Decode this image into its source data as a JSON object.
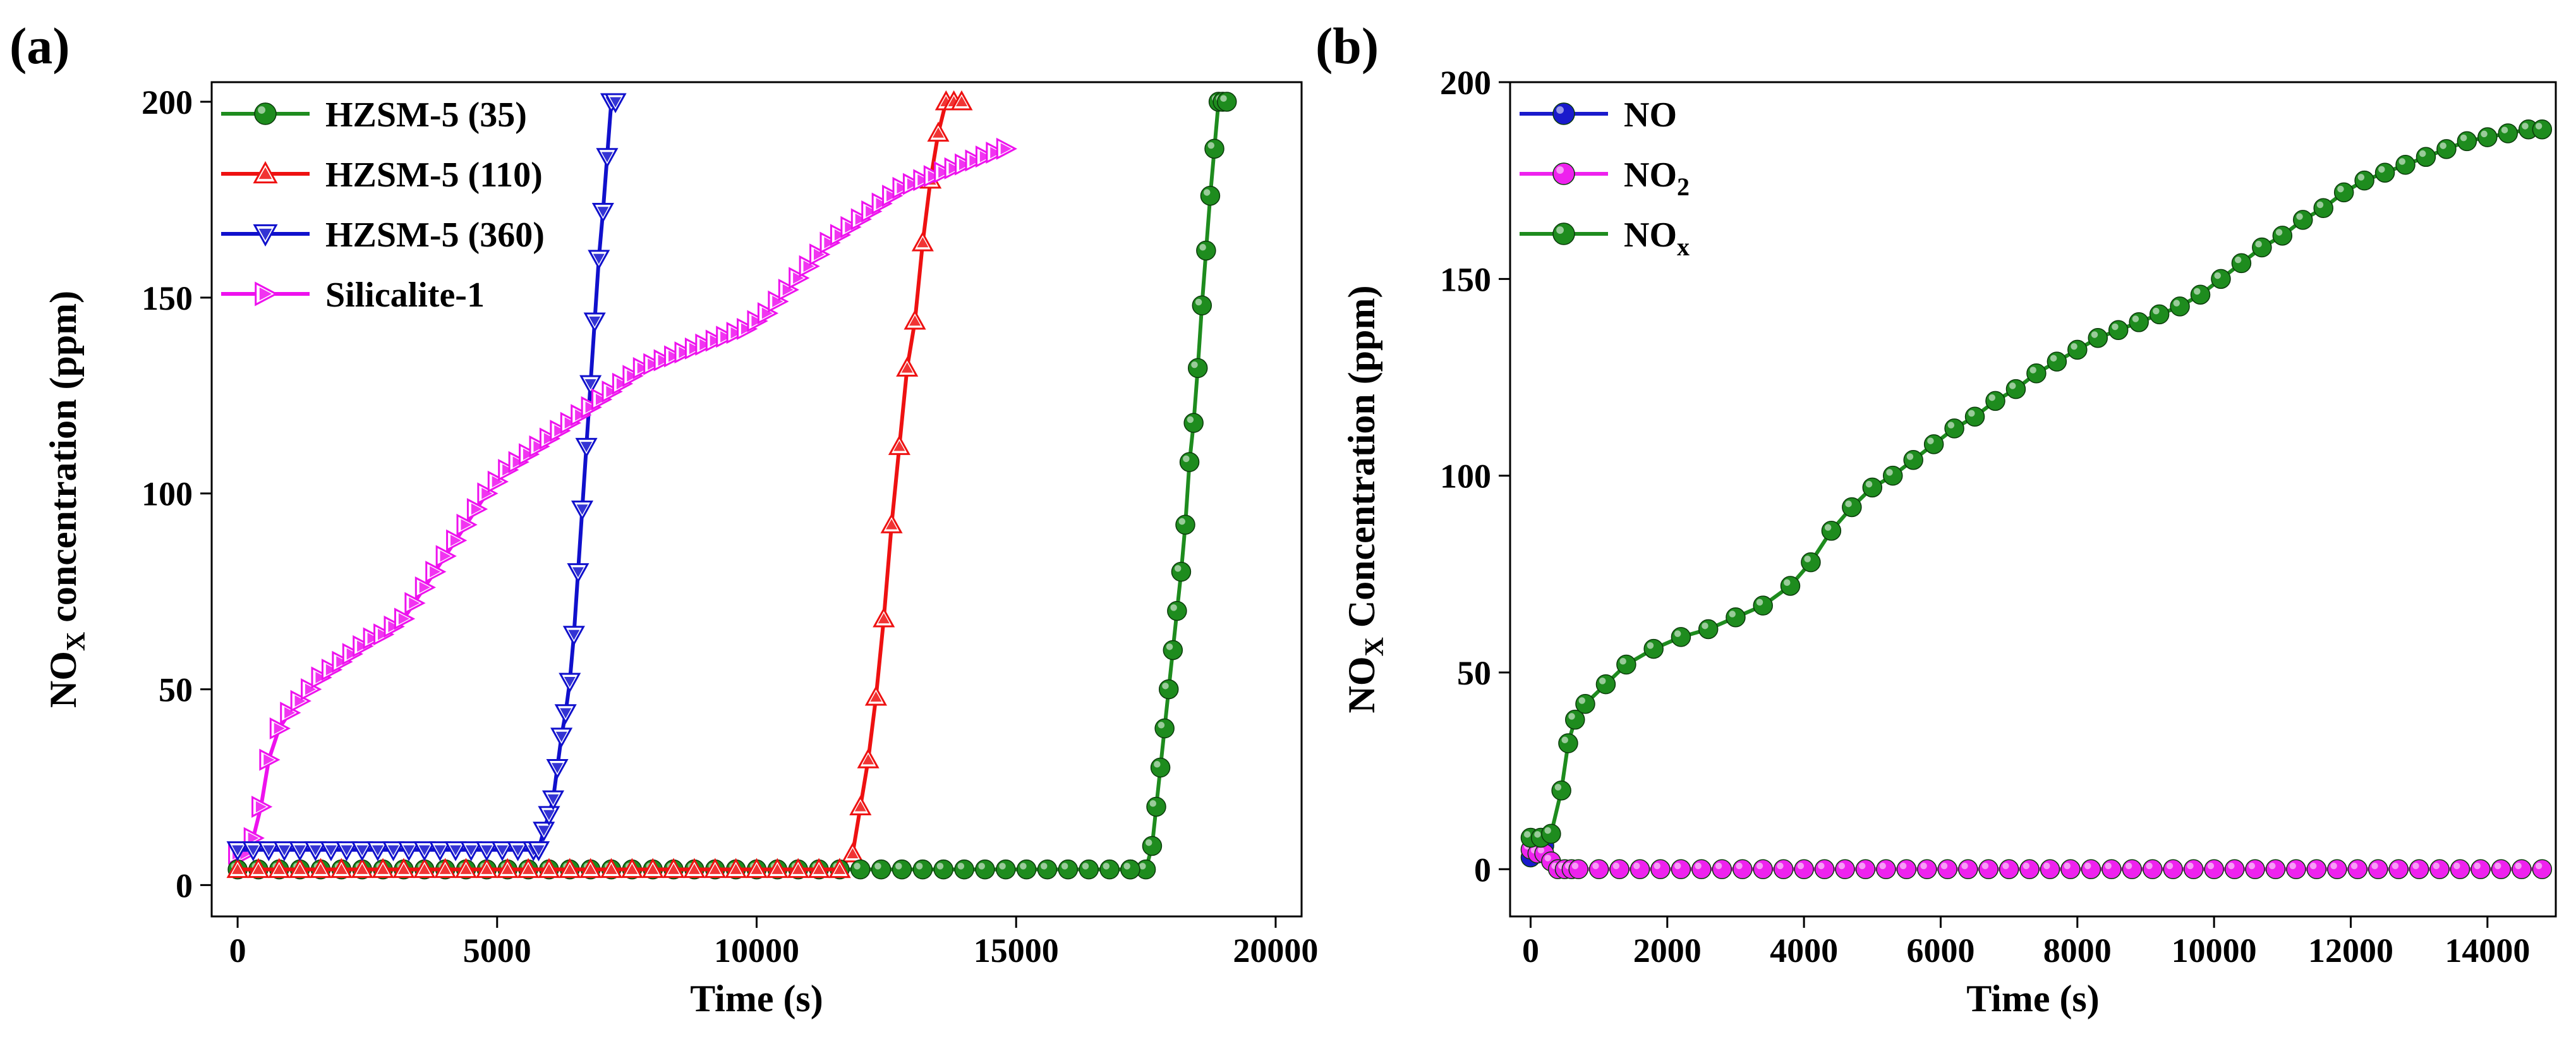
{
  "panels": {
    "a": {
      "label": "(a)"
    },
    "b": {
      "label": "(b)"
    }
  },
  "chart_data": [
    {
      "id": "a",
      "type": "line",
      "xlabel": "Time (s)",
      "ylabel_main": "NO",
      "ylabel_sub": "X",
      "ylabel_rest": " concentration (ppm)",
      "xlim": [
        -500,
        20500
      ],
      "ylim": [
        -8,
        205
      ],
      "xticks": [
        0,
        5000,
        10000,
        15000,
        20000
      ],
      "yticks": [
        0,
        50,
        100,
        150,
        200
      ],
      "xtick_labels": [
        "0",
        "5000",
        "10000",
        "15000",
        "20000"
      ],
      "ytick_labels": [
        "0",
        "50",
        "100",
        "150",
        "200"
      ],
      "legend_position": "top-left",
      "series": [
        {
          "name": "HZSM-5 (35)",
          "color": "#1e8c1e",
          "marker": "circle",
          "x": [
            17200,
            17500,
            17620,
            17700,
            17780,
            17860,
            17940,
            18020,
            18100,
            18180,
            18260,
            18340,
            18420,
            18500,
            18580,
            18660,
            18740,
            18820,
            18900,
            18980,
            19060
          ],
          "y": [
            4,
            4,
            10,
            20,
            30,
            40,
            50,
            60,
            70,
            80,
            92,
            108,
            118,
            132,
            148,
            162,
            176,
            188,
            200,
            200,
            200
          ]
        },
        {
          "name": "HZSM-5 (110)",
          "color": "#ee1111",
          "marker": "triangle-up",
          "x": [
            11600,
            11850,
            12000,
            12150,
            12300,
            12450,
            12600,
            12750,
            12900,
            13050,
            13200,
            13350,
            13500,
            13650,
            13800,
            13950
          ],
          "y": [
            4,
            8,
            20,
            32,
            48,
            68,
            92,
            112,
            132,
            144,
            164,
            180,
            192,
            200,
            200,
            200
          ]
        },
        {
          "name": "HZSM-5 (360)",
          "color": "#1010cc",
          "marker": "triangle-down",
          "x": [
            5800,
            5900,
            6000,
            6080,
            6160,
            6240,
            6320,
            6400,
            6480,
            6560,
            6640,
            6720,
            6800,
            6880,
            6960,
            7040,
            7120,
            7200,
            7280
          ],
          "y": [
            9,
            14,
            18,
            22,
            30,
            38,
            44,
            52,
            64,
            80,
            96,
            112,
            128,
            144,
            160,
            172,
            186,
            200,
            200
          ]
        },
        {
          "name": "Silicalite-1",
          "color": "#ee11ee",
          "marker": "diamond",
          "x": [
            0,
            150,
            300,
            450,
            600,
            800,
            1000,
            1200,
            1400,
            1600,
            1800,
            2000,
            2200,
            2400,
            2600,
            2800,
            3000,
            3200,
            3400,
            3600,
            3800,
            4000,
            4200,
            4400,
            4600,
            4800,
            5000,
            5200,
            5400,
            5600,
            5800,
            6000,
            6200,
            6400,
            6600,
            6800,
            7000,
            7200,
            7400,
            7600,
            7800,
            8000,
            8200,
            8400,
            8600,
            8800,
            9000,
            9200,
            9400,
            9600,
            9800,
            10000,
            10200,
            10400,
            10600,
            10800,
            11000,
            11200,
            11400,
            11600,
            11800,
            12000,
            12200,
            12400,
            12600,
            12800,
            13000,
            13200,
            13400,
            13600,
            13800,
            14000,
            14200,
            14400,
            14600,
            14800
          ],
          "y": [
            8,
            8,
            12,
            20,
            32,
            40,
            44,
            47,
            50,
            53,
            55,
            57,
            59,
            61,
            63,
            64,
            66,
            68,
            72,
            76,
            80,
            84,
            88,
            92,
            96,
            100,
            103,
            106,
            108,
            110,
            112,
            114,
            116,
            118,
            120,
            122,
            124,
            126,
            128,
            130,
            132,
            133,
            134,
            135,
            136,
            137,
            138,
            139,
            140,
            141,
            142,
            144,
            146,
            149,
            152,
            155,
            158,
            161,
            164,
            166,
            168,
            170,
            172,
            174,
            176,
            178,
            179,
            180,
            181,
            182,
            183,
            184,
            185,
            186,
            187,
            188
          ]
        },
        {
          "name": "HZSM-5 (35) baseline",
          "color": "#1e8c1e",
          "marker": "circle",
          "legend": false,
          "x": [
            0,
            400,
            800,
            1200,
            1600,
            2000,
            2400,
            2800,
            3200,
            3600,
            4000,
            4400,
            4800,
            5200,
            5600,
            6000,
            6400,
            6800,
            7200,
            7600,
            8000,
            8400,
            8800,
            9200,
            9600,
            10000,
            10400,
            10800,
            11200,
            11600,
            12000,
            12400,
            12800,
            13200,
            13600,
            14000,
            14400,
            14800,
            15200,
            15600,
            16000,
            16400,
            16800,
            17200
          ],
          "y": [
            4,
            4,
            4,
            4,
            4,
            4,
            4,
            4,
            4,
            4,
            4,
            4,
            4,
            4,
            4,
            4,
            4,
            4,
            4,
            4,
            4,
            4,
            4,
            4,
            4,
            4,
            4,
            4,
            4,
            4,
            4,
            4,
            4,
            4,
            4,
            4,
            4,
            4,
            4,
            4,
            4,
            4,
            4,
            4
          ]
        },
        {
          "name": "HZSM-5 (110) baseline",
          "color": "#ee1111",
          "marker": "triangle-up",
          "legend": false,
          "x": [
            0,
            400,
            800,
            1200,
            1600,
            2000,
            2400,
            2800,
            3200,
            3600,
            4000,
            4400,
            4800,
            5200,
            5600,
            6000,
            6400,
            6800,
            7200,
            7600,
            8000,
            8400,
            8800,
            9200,
            9600,
            10000,
            10400,
            10800,
            11200,
            11600
          ],
          "y": [
            4,
            4,
            4,
            4,
            4,
            4,
            4,
            4,
            4,
            4,
            4,
            4,
            4,
            4,
            4,
            4,
            4,
            4,
            4,
            4,
            4,
            4,
            4,
            4,
            4,
            4,
            4,
            4,
            4,
            4
          ]
        },
        {
          "name": "HZSM-5 (360) baseline",
          "color": "#1010cc",
          "marker": "triangle-down",
          "legend": false,
          "x": [
            0,
            300,
            600,
            900,
            1200,
            1500,
            1800,
            2100,
            2400,
            2700,
            3000,
            3300,
            3600,
            3900,
            4200,
            4500,
            4800,
            5100,
            5400,
            5700,
            5800
          ],
          "y": [
            9,
            9,
            9,
            9,
            9,
            9,
            9,
            9,
            9,
            9,
            9,
            9,
            9,
            9,
            9,
            9,
            9,
            9,
            9,
            9,
            9
          ]
        }
      ]
    },
    {
      "id": "b",
      "type": "line",
      "xlabel": "Time (s)",
      "ylabel_main": "NO",
      "ylabel_sub": "X",
      "ylabel_rest": " Concentration (ppm)",
      "xlim": [
        -300,
        15000
      ],
      "ylim": [
        -12,
        200
      ],
      "xticks": [
        0,
        2000,
        4000,
        6000,
        8000,
        10000,
        12000,
        14000
      ],
      "yticks": [
        0,
        50,
        100,
        150,
        200
      ],
      "xtick_labels": [
        "0",
        "2000",
        "4000",
        "6000",
        "8000",
        "10000",
        "12000",
        "14000"
      ],
      "ytick_labels": [
        "0",
        "50",
        "100",
        "150",
        "200"
      ],
      "legend_position": "top-left",
      "series": [
        {
          "name": "NO",
          "legend_main": "NO",
          "legend_sub": "",
          "color": "#1a1acc",
          "marker": "circle",
          "x": [
            0,
            100,
            200
          ],
          "y": [
            3,
            4,
            6
          ]
        },
        {
          "name": "NO2",
          "legend_main": "NO",
          "legend_sub": "2",
          "color": "#ee22ee",
          "marker": "circle",
          "x": [
            0,
            100,
            200,
            300,
            400,
            500,
            600,
            700,
            1000,
            1300,
            1600,
            1900,
            2200,
            2500,
            2800,
            3100,
            3400,
            3700,
            4000,
            4300,
            4600,
            4900,
            5200,
            5500,
            5800,
            6100,
            6400,
            6700,
            7000,
            7300,
            7600,
            7900,
            8200,
            8500,
            8800,
            9100,
            9400,
            9700,
            10000,
            10300,
            10600,
            10900,
            11200,
            11500,
            11800,
            12100,
            12400,
            12700,
            13000,
            13300,
            13600,
            13900,
            14200,
            14500,
            14800
          ],
          "y": [
            5,
            4,
            4,
            2,
            0,
            0,
            0,
            0,
            0,
            0,
            0,
            0,
            0,
            0,
            0,
            0,
            0,
            0,
            0,
            0,
            0,
            0,
            0,
            0,
            0,
            0,
            0,
            0,
            0,
            0,
            0,
            0,
            0,
            0,
            0,
            0,
            0,
            0,
            0,
            0,
            0,
            0,
            0,
            0,
            0,
            0,
            0,
            0,
            0,
            0,
            0,
            0,
            0,
            0,
            0
          ]
        },
        {
          "name": "NOx",
          "legend_main": "NO",
          "legend_sub": "x",
          "color": "#1e8c1e",
          "marker": "circle",
          "x": [
            0,
            150,
            300,
            450,
            550,
            650,
            800,
            1100,
            1400,
            1800,
            2200,
            2600,
            3000,
            3400,
            3800,
            4100,
            4400,
            4700,
            5000,
            5300,
            5600,
            5900,
            6200,
            6500,
            6800,
            7100,
            7400,
            7700,
            8000,
            8300,
            8600,
            8900,
            9200,
            9500,
            9800,
            10100,
            10400,
            10700,
            11000,
            11300,
            11600,
            11900,
            12200,
            12500,
            12800,
            13100,
            13400,
            13700,
            14000,
            14300,
            14600,
            14800
          ],
          "y": [
            8,
            8,
            9,
            20,
            32,
            38,
            42,
            47,
            52,
            56,
            59,
            61,
            64,
            67,
            72,
            78,
            86,
            92,
            97,
            100,
            104,
            108,
            112,
            115,
            119,
            122,
            126,
            129,
            132,
            135,
            137,
            139,
            141,
            143,
            146,
            150,
            154,
            158,
            161,
            165,
            168,
            172,
            175,
            177,
            179,
            181,
            183,
            185,
            186,
            187,
            188,
            188
          ]
        }
      ]
    }
  ]
}
